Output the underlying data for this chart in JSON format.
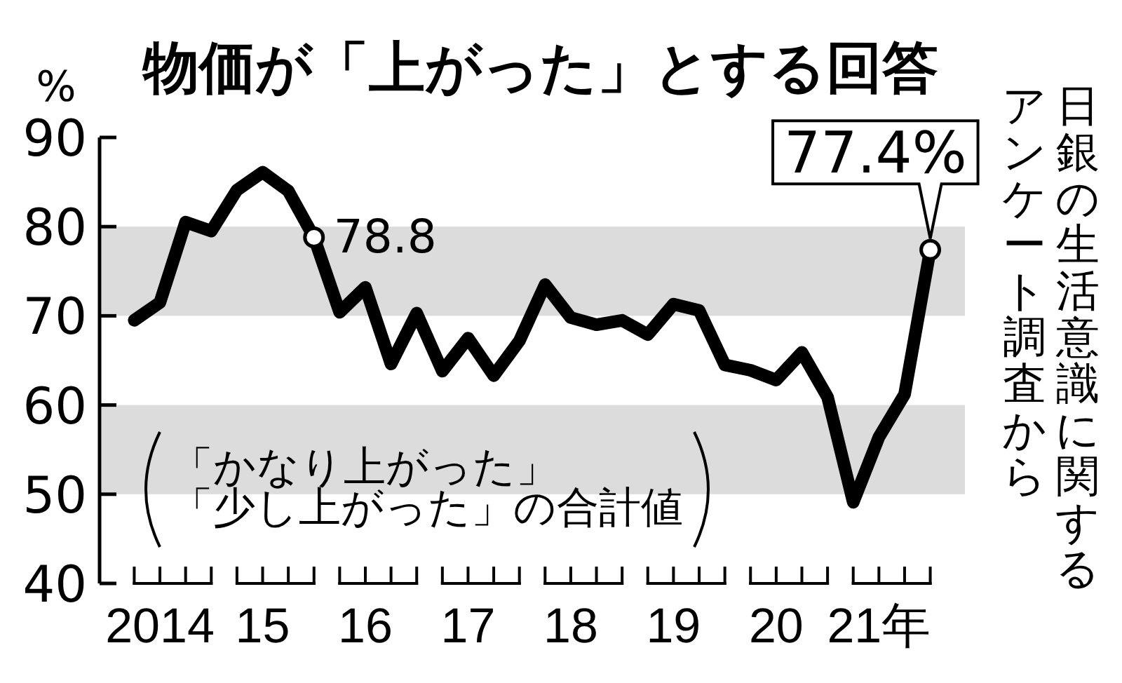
{
  "chart_data": {
    "type": "line",
    "title": "物価が「上がった」とする回答",
    "ylabel": "%",
    "categories": [
      null,
      "2014",
      null,
      null,
      null,
      "15",
      null,
      null,
      null,
      "16",
      null,
      null,
      null,
      "17",
      null,
      null,
      null,
      "18",
      null,
      null,
      null,
      "19",
      null,
      null,
      null,
      "20",
      null,
      null,
      null,
      "21年",
      null,
      null
    ],
    "series": [
      {
        "color": "#000000",
        "values": [
          69.5,
          71.5,
          80.5,
          79.5,
          84.1,
          86.1,
          84.0,
          78.8,
          70.4,
          73.2,
          64.6,
          70.3,
          63.8,
          67.5,
          63.3,
          67.2,
          73.5,
          69.8,
          69.0,
          69.5,
          67.9,
          71.3,
          70.6,
          64.5,
          63.9,
          62.8,
          65.9,
          60.9,
          49.1,
          56.4,
          61.2,
          77.4
        ],
        "value_labels": [
          null,
          null,
          null,
          null,
          null,
          null,
          null,
          "78.8",
          null,
          null,
          null,
          null,
          null,
          null,
          null,
          null,
          null,
          null,
          null,
          null,
          null,
          null,
          null,
          null,
          null,
          null,
          null,
          null,
          null,
          null,
          null,
          "77.4%"
        ]
      }
    ],
    "ylim": [
      40,
      90
    ],
    "yticks": [
      40,
      50,
      60,
      70,
      80,
      90
    ],
    "bands": [
      {
        "axis": "y",
        "from": 70,
        "to": 80,
        "color": "#dcdcdc"
      },
      {
        "axis": "y",
        "from": 50,
        "to": 60,
        "color": "#dcdcdc"
      }
    ],
    "line_style": "solid",
    "annotations": [
      "「かなり上がった」",
      "「少し上がった」の合計値",
      "日銀の生活意識に関するアンケート調査から"
    ]
  }
}
